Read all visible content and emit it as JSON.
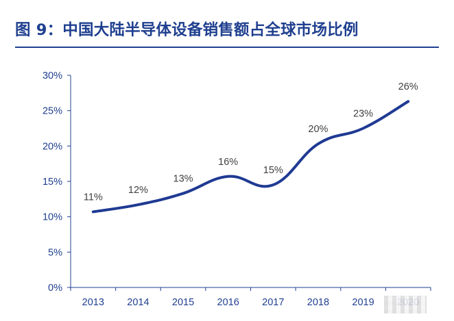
{
  "title": "图 9：中国大陆半导体设备销售额占全球市场比例",
  "chart_data": {
    "type": "line",
    "categories": [
      "2013",
      "2014",
      "2015",
      "2016",
      "2017",
      "2018",
      "2019",
      "2020"
    ],
    "series": [
      {
        "values": [
          10.7,
          11.7,
          13.3,
          15.7,
          14.5,
          20.3,
          22.5,
          26.3
        ]
      }
    ],
    "data_labels": [
      "11%",
      "12%",
      "13%",
      "16%",
      "15%",
      "20%",
      "23%",
      "26%"
    ],
    "yticks": [
      "0%",
      "5%",
      "10%",
      "15%",
      "20%",
      "25%",
      "30%"
    ],
    "ylim": [
      0,
      30
    ],
    "line_color": "#1f3a93",
    "axis_color": "#1f3f8f",
    "grid": false,
    "xlabel": "",
    "ylabel": ""
  }
}
